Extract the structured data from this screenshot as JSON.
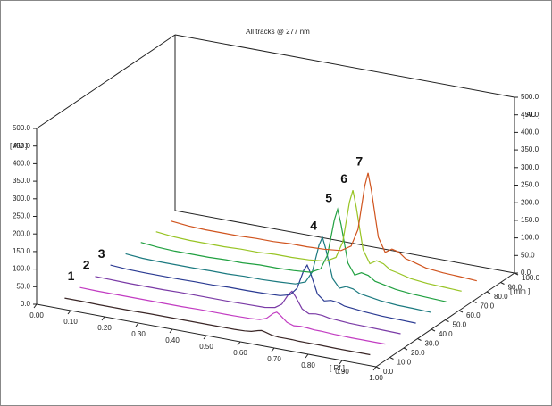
{
  "chart_data": {
    "type": "line3d",
    "title": "All tracks @ 277 nm",
    "y_label": "[ AU ]",
    "y2_label": "[ AU ]",
    "x_label": "[ Rf ]",
    "z_label": "[ mm ]",
    "ylim": [
      0,
      500
    ],
    "yticks": [
      {
        "value": 0,
        "label": "0.0"
      },
      {
        "value": 50,
        "label": "50.0"
      },
      {
        "value": 100,
        "label": "100.0"
      },
      {
        "value": 150,
        "label": "150.0"
      },
      {
        "value": 200,
        "label": "200.0"
      },
      {
        "value": 250,
        "label": "250.0"
      },
      {
        "value": 300,
        "label": "300.0"
      },
      {
        "value": 350,
        "label": "350.0"
      },
      {
        "value": 400,
        "label": "400.0"
      },
      {
        "value": 450,
        "label": "450.0"
      },
      {
        "value": 500,
        "label": "500.0"
      }
    ],
    "y2lim": [
      0,
      500
    ],
    "y2ticks": [
      {
        "value": 0,
        "label": "0.0"
      },
      {
        "value": 50,
        "label": "50.0"
      },
      {
        "value": 100,
        "label": "100.0"
      },
      {
        "value": 150,
        "label": "150.0"
      },
      {
        "value": 200,
        "label": "200.0"
      },
      {
        "value": 250,
        "label": "250.0"
      },
      {
        "value": 300,
        "label": "300.0"
      },
      {
        "value": 350,
        "label": "350.0"
      },
      {
        "value": 400,
        "label": "400.0"
      },
      {
        "value": 450,
        "label": "450.0"
      },
      {
        "value": 500,
        "label": "500.0"
      }
    ],
    "xlim": [
      0,
      1
    ],
    "xticks": [
      {
        "value": 0,
        "label": "0.00"
      },
      {
        "value": 0.1,
        "label": "0.10"
      },
      {
        "value": 0.2,
        "label": "0.20"
      },
      {
        "value": 0.3,
        "label": "0.30"
      },
      {
        "value": 0.4,
        "label": "0.40"
      },
      {
        "value": 0.5,
        "label": "0.50"
      },
      {
        "value": 0.6,
        "label": "0.60"
      },
      {
        "value": 0.7,
        "label": "0.70"
      },
      {
        "value": 0.8,
        "label": "0.80"
      },
      {
        "value": 0.9,
        "label": "0.90"
      },
      {
        "value": 1,
        "label": "1.00"
      }
    ],
    "zlim": [
      0,
      100
    ],
    "zticks": [
      {
        "value": 0,
        "label": "0.0"
      },
      {
        "value": 10,
        "label": "10.0"
      },
      {
        "value": 20,
        "label": "20.0"
      },
      {
        "value": 30,
        "label": "30.0"
      },
      {
        "value": 40,
        "label": "40.0"
      },
      {
        "value": 50,
        "label": "50.0"
      },
      {
        "value": 60,
        "label": "60.0"
      },
      {
        "value": 70,
        "label": "70.0"
      },
      {
        "value": 80,
        "label": "80.0"
      },
      {
        "value": 90,
        "label": "90.0"
      },
      {
        "value": 100,
        "label": "100.0"
      }
    ],
    "x": [
      0.05,
      0.1,
      0.15,
      0.2,
      0.25,
      0.3,
      0.35,
      0.4,
      0.45,
      0.5,
      0.55,
      0.58,
      0.6,
      0.62,
      0.63,
      0.64,
      0.66,
      0.68,
      0.7,
      0.72,
      0.74,
      0.76,
      0.8,
      0.85,
      0.9,
      0.95
    ],
    "series": [
      {
        "color": "#3a2626",
        "values": [
          5,
          5,
          4,
          4,
          4,
          5,
          5,
          5,
          5,
          5,
          5,
          6,
          8,
          14,
          16,
          14,
          8,
          6,
          6,
          6,
          5,
          5,
          5,
          4,
          4,
          4
        ]
      },
      {
        "color": "#c23cc2",
        "peak_label": "1",
        "values": [
          6,
          5,
          5,
          5,
          5,
          5,
          5,
          6,
          6,
          6,
          7,
          9,
          16,
          34,
          39,
          32,
          15,
          9,
          11,
          10,
          8,
          8,
          6,
          5,
          5,
          5
        ]
      },
      {
        "color": "#7a3aa6",
        "peak_label": "2",
        "values": [
          8,
          7,
          6,
          6,
          6,
          7,
          7,
          7,
          7,
          8,
          9,
          14,
          27,
          59,
          69,
          56,
          24,
          14,
          17,
          16,
          12,
          11,
          8,
          7,
          6,
          5
        ]
      },
      {
        "color": "#2a3a92",
        "peak_label": "3",
        "values": [
          11,
          8,
          7,
          7,
          7,
          8,
          8,
          10,
          10,
          11,
          13,
          21,
          43,
          98,
          114,
          92,
          37,
          21,
          26,
          24,
          17,
          15,
          11,
          8,
          7,
          6
        ]
      },
      {
        "color": "#1c7a80",
        "peak_label": "4",
        "values": [
          14,
          10,
          9,
          9,
          9,
          10,
          10,
          12,
          12,
          14,
          17,
          28,
          60,
          140,
          164,
          132,
          52,
          28,
          36,
          33,
          23,
          20,
          14,
          10,
          9,
          7
        ]
      },
      {
        "color": "#20a040",
        "peak_label": "5",
        "values": [
          17,
          12,
          10,
          10,
          10,
          12,
          12,
          15,
          15,
          17,
          21,
          36,
          78,
          182,
          214,
          172,
          67,
          36,
          46,
          42,
          29,
          25,
          17,
          12,
          10,
          8
        ]
      },
      {
        "color": "#98c424",
        "peak_label": "6",
        "values": [
          18,
          13,
          11,
          11,
          11,
          13,
          13,
          16,
          16,
          18,
          23,
          39,
          86,
          204,
          239,
          192,
          75,
          39,
          51,
          46,
          32,
          28,
          18,
          13,
          11,
          9
        ]
      },
      {
        "color": "#d0541e",
        "peak_label": "7",
        "values": [
          19,
          14,
          12,
          12,
          12,
          14,
          14,
          17,
          17,
          19,
          24,
          42,
          93,
          221,
          259,
          208,
          81,
          42,
          55,
          50,
          35,
          30,
          19,
          14,
          12,
          9
        ]
      }
    ]
  }
}
